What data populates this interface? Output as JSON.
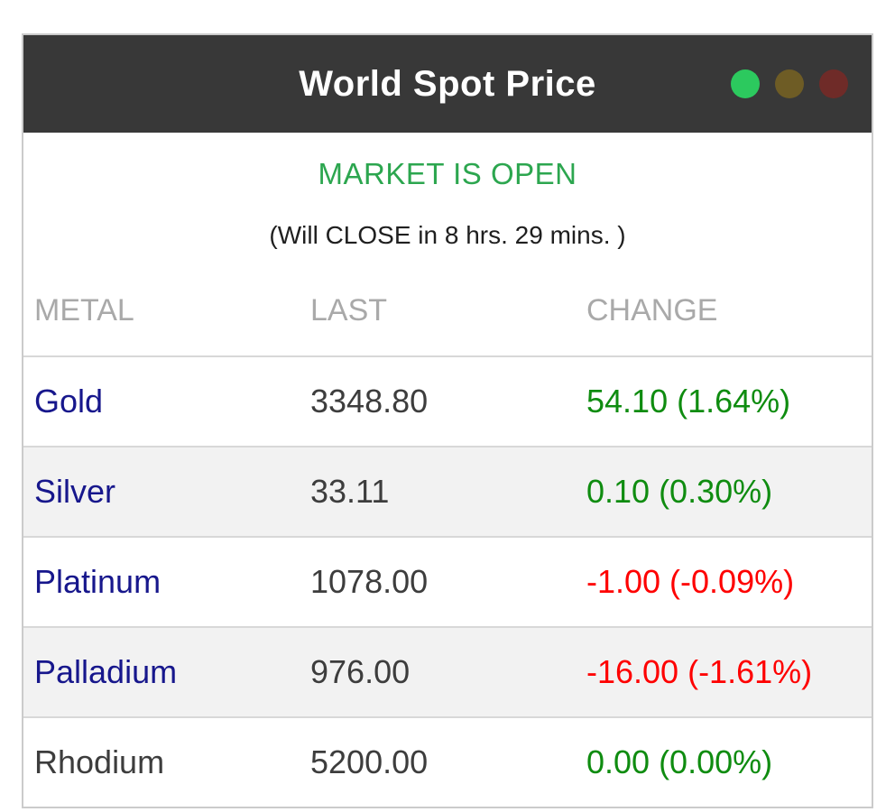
{
  "window": {
    "title": "World Spot Price"
  },
  "traffic_lights": [
    {
      "name": "green",
      "color": "#2cc95e"
    },
    {
      "name": "yellow",
      "color": "#6e5c25"
    },
    {
      "name": "red",
      "color": "#6f2b28"
    }
  ],
  "status": {
    "market_status": "MARKET IS OPEN",
    "countdown": "(Will CLOSE in 8 hrs. 29 mins. )"
  },
  "table": {
    "columns": [
      "METAL",
      "LAST",
      "CHANGE"
    ],
    "rows": [
      {
        "metal": "Gold",
        "last": "3348.80",
        "change": "54.10 (1.64%)",
        "direction": "up",
        "link": true
      },
      {
        "metal": "Silver",
        "last": "33.11",
        "change": "0.10 (0.30%)",
        "direction": "up",
        "link": true
      },
      {
        "metal": "Platinum",
        "last": "1078.00",
        "change": "-1.00 (-0.09%)",
        "direction": "down",
        "link": true
      },
      {
        "metal": "Palladium",
        "last": "976.00",
        "change": "-16.00 (-1.61%)",
        "direction": "down",
        "link": true
      },
      {
        "metal": "Rhodium",
        "last": "5200.00",
        "change": "0.00 (0.00%)",
        "direction": "up",
        "link": false
      }
    ]
  },
  "colors": {
    "header_bg": "#383838",
    "header_text": "#ffffff",
    "dot_green": "#2cc95e",
    "dot_yellow": "#6e5c25",
    "dot_red": "#6f2b28",
    "market_open_green": "#2ca64f",
    "status_text": "#1f1f1f",
    "muted_header": "#a9a9a9",
    "text_dark": "#3d3d3d",
    "metal_link": "#17178c",
    "up_green": "#0f8c10",
    "down_red": "#fe0000",
    "row_alt_bg": "#f2f2f2",
    "row_divider": "#d8d8d8",
    "border_gray": "#cbcbcb"
  }
}
